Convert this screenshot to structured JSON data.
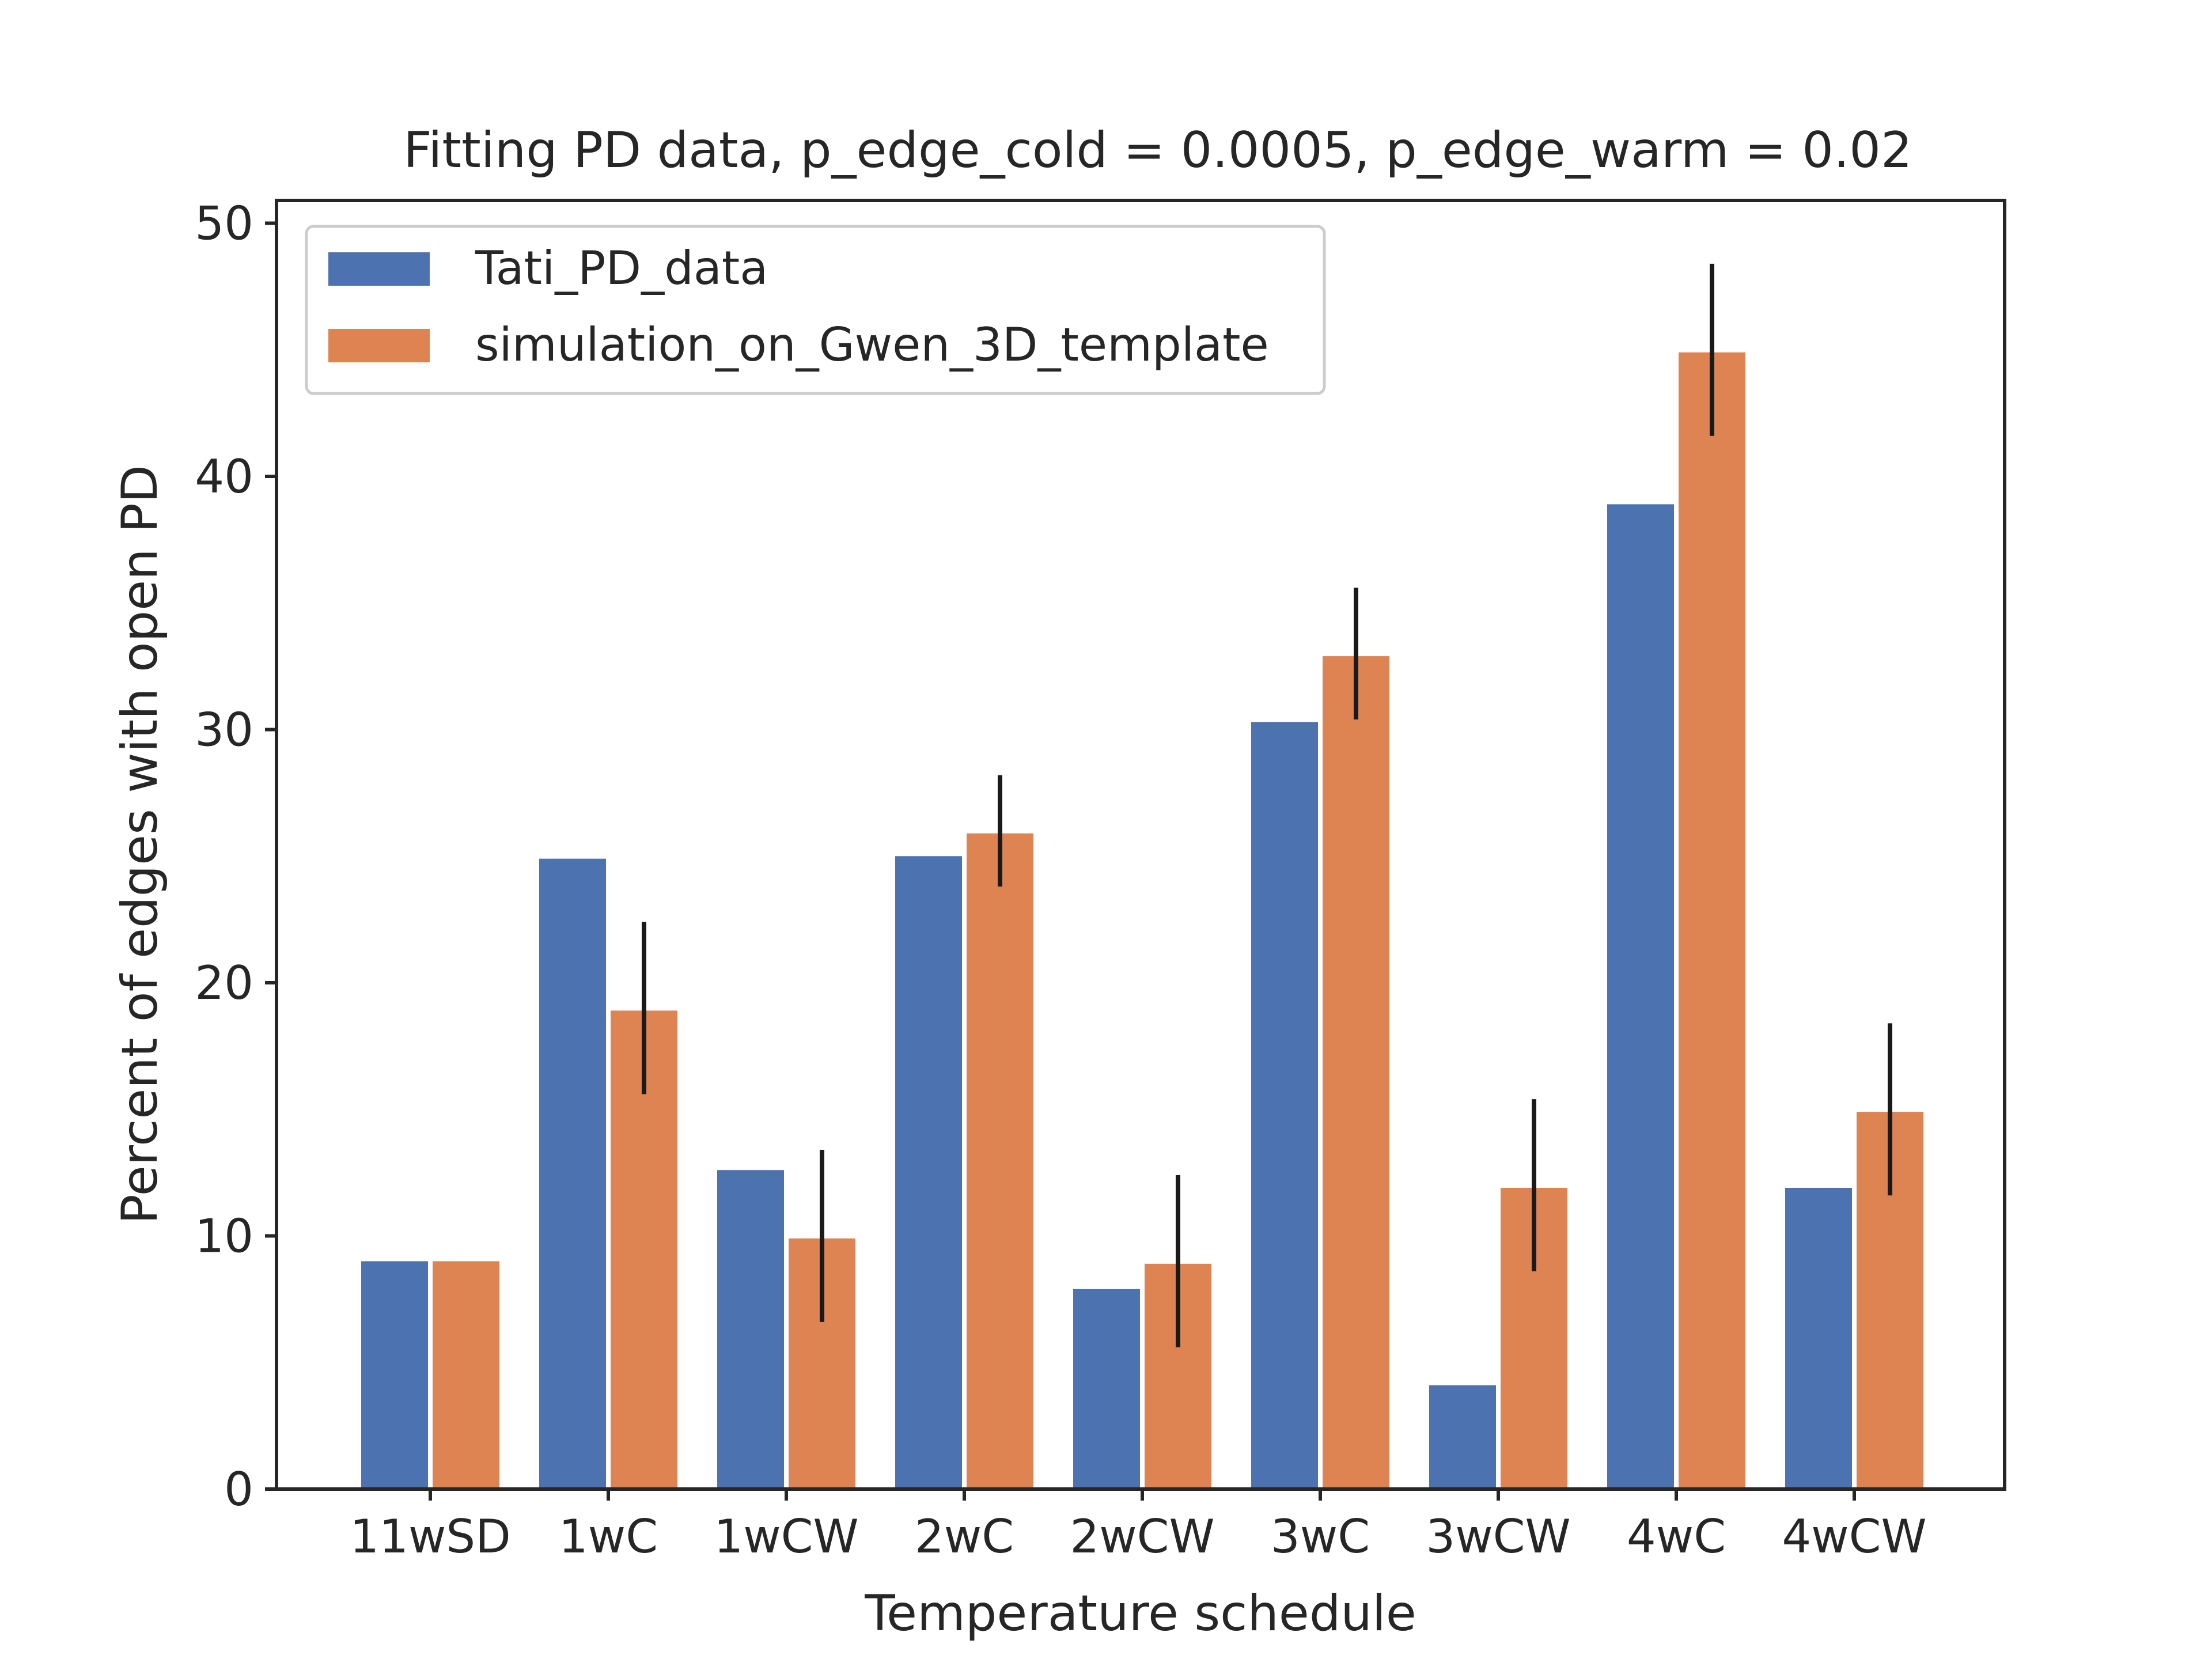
{
  "chart_data": {
    "type": "bar",
    "title": "Fitting PD data, p_edge_cold = 0.0005, p_edge_warm = 0.02",
    "xlabel": "Temperature schedule",
    "ylabel": "Percent of edges with open PD",
    "ylim": [
      0,
      50.9
    ],
    "yticks": [
      0,
      10,
      20,
      30,
      40,
      50
    ],
    "categories": [
      "11wSD",
      "1wC",
      "1wCW",
      "2wC",
      "2wCW",
      "3wC",
      "3wCW",
      "4wC",
      "4wCW"
    ],
    "legend_position": "top-left",
    "grid": false,
    "series": [
      {
        "name": "Tati_PD_data",
        "color": "#4c72b0",
        "values": [
          9.0,
          24.9,
          12.6,
          25.0,
          7.9,
          30.3,
          4.1,
          38.9,
          11.9
        ]
      },
      {
        "name": "simulation_on_Gwen_3D_template",
        "color": "#dd8452",
        "values": [
          9.0,
          18.9,
          9.9,
          25.9,
          8.9,
          32.9,
          11.9,
          44.9,
          14.9
        ],
        "error": [
          null,
          [
            15.6,
            22.4
          ],
          [
            6.6,
            13.4
          ],
          [
            23.8,
            28.2
          ],
          [
            5.6,
            12.4
          ],
          [
            30.4,
            35.6
          ],
          [
            8.6,
            15.4
          ],
          [
            41.6,
            48.4
          ],
          [
            11.6,
            18.4
          ]
        ]
      }
    ]
  }
}
